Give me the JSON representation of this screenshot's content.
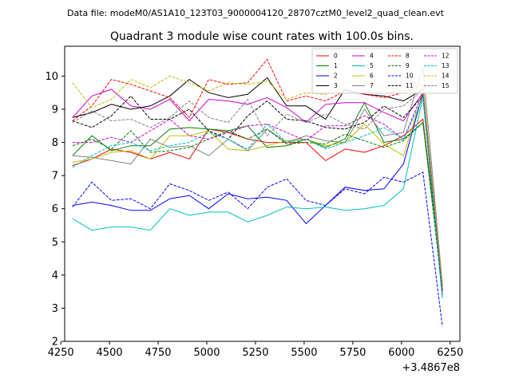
{
  "header": {
    "subtitle": "Data file: modeM0/AS1A10_123T03_9000004120_28707cztM0_level2_quad_clean.evt",
    "title": "Quadrant 3 module wise count rates with 100.0s bins."
  },
  "chart_data": {
    "type": "line",
    "title": "Quadrant 3 module wise count rates with 100.0s bins.",
    "subtitle": "Data file: modeM0/AS1A10_123T03_9000004120_28707cztM0_level2_quad_clean.evt",
    "xlabel": "",
    "ylabel": "",
    "x_offset_label": "+3.4867e8",
    "xlim": [
      4270,
      6300
    ],
    "ylim": [
      2,
      10.9
    ],
    "x_ticks": [
      4250,
      4500,
      4750,
      5000,
      5250,
      5500,
      5750,
      6000,
      6250
    ],
    "y_ticks": [
      2,
      3,
      4,
      5,
      6,
      7,
      8,
      9,
      10
    ],
    "grid": false,
    "legend_placement": "top-right",
    "x": [
      4310,
      4410,
      4510,
      4610,
      4710,
      4810,
      4910,
      5010,
      5110,
      5210,
      5310,
      5410,
      5510,
      5610,
      5710,
      5810,
      5910,
      6010,
      6110,
      6210
    ],
    "series": [
      {
        "name": "0",
        "color": "#ff0000",
        "dash": "solid",
        "values": [
          7.3,
          7.5,
          7.8,
          7.7,
          7.5,
          7.7,
          7.5,
          8.4,
          8.3,
          8.1,
          8.0,
          8.0,
          8.0,
          7.45,
          7.8,
          7.7,
          7.9,
          8.2,
          8.7,
          3.7
        ]
      },
      {
        "name": "1",
        "color": "#008000",
        "dash": "solid",
        "values": [
          7.6,
          8.2,
          7.75,
          7.9,
          7.9,
          8.4,
          8.45,
          8.4,
          8.35,
          8.5,
          7.85,
          7.9,
          8.1,
          7.85,
          8.1,
          9.2,
          8.0,
          8.1,
          8.6,
          3.7
        ]
      },
      {
        "name": "2",
        "color": "#0000ff",
        "dash": "solid",
        "values": [
          6.1,
          6.2,
          6.1,
          5.95,
          5.95,
          6.3,
          6.4,
          6.0,
          6.45,
          6.3,
          6.35,
          6.25,
          5.55,
          6.1,
          6.65,
          6.55,
          6.6,
          7.35,
          9.5,
          3.6
        ]
      },
      {
        "name": "3",
        "color": "#000000",
        "dash": "solid",
        "values": [
          8.75,
          8.9,
          9.15,
          9.0,
          9.1,
          9.4,
          9.9,
          9.5,
          9.35,
          9.45,
          9.95,
          9.1,
          9.1,
          8.7,
          9.6,
          9.45,
          9.4,
          9.25,
          9.6,
          3.6
        ]
      },
      {
        "name": "4",
        "color": "#cc00cc",
        "dash": "solid",
        "values": [
          8.75,
          9.4,
          9.6,
          9.1,
          9.0,
          9.3,
          8.65,
          9.3,
          9.25,
          9.15,
          9.35,
          9.05,
          8.6,
          9.15,
          9.2,
          9.2,
          8.9,
          8.65,
          9.5,
          3.5
        ]
      },
      {
        "name": "5",
        "color": "#00bfbf",
        "dash": "solid",
        "values": [
          5.7,
          5.35,
          5.45,
          5.45,
          5.35,
          6.0,
          5.8,
          5.9,
          5.9,
          5.6,
          5.8,
          6.05,
          6.0,
          6.05,
          5.95,
          6.0,
          6.1,
          6.6,
          9.4,
          3.3
        ]
      },
      {
        "name": "6",
        "color": "#bfbf00",
        "dash": "solid",
        "values": [
          7.4,
          7.5,
          7.7,
          7.75,
          7.5,
          8.2,
          8.2,
          8.35,
          7.8,
          7.75,
          7.9,
          8.05,
          8.1,
          7.9,
          8.0,
          8.55,
          7.95,
          7.6,
          9.5,
          3.6
        ]
      },
      {
        "name": "7",
        "color": "#808080",
        "dash": "solid",
        "values": [
          7.6,
          7.55,
          7.45,
          7.35,
          8.1,
          7.85,
          7.9,
          7.6,
          8.1,
          7.75,
          8.4,
          8.0,
          8.2,
          8.05,
          8.0,
          9.0,
          8.2,
          8.3,
          10.25,
          3.7
        ]
      },
      {
        "name": "8",
        "color": "#ff0000",
        "dash": "dashed",
        "values": [
          8.65,
          9.1,
          9.9,
          9.75,
          9.55,
          9.35,
          8.75,
          9.9,
          9.75,
          9.8,
          10.5,
          9.25,
          9.4,
          9.25,
          9.55,
          9.45,
          9.35,
          9.5,
          9.75,
          3.5
        ]
      },
      {
        "name": "9",
        "color": "#008000",
        "dash": "dashed",
        "values": [
          7.9,
          8.1,
          7.8,
          8.35,
          7.7,
          7.75,
          7.85,
          8.1,
          8.35,
          8.1,
          8.4,
          7.95,
          8.0,
          7.95,
          8.25,
          8.05,
          7.85,
          8.05,
          8.6,
          3.5
        ]
      },
      {
        "name": "10",
        "color": "#0000ff",
        "dash": "dashed",
        "values": [
          6.05,
          6.8,
          6.25,
          6.3,
          6.0,
          6.75,
          6.55,
          6.25,
          6.5,
          6.0,
          6.65,
          6.9,
          6.25,
          6.1,
          6.6,
          6.45,
          6.95,
          6.8,
          7.1,
          2.45
        ]
      },
      {
        "name": "11",
        "color": "#000000",
        "dash": "dashed",
        "values": [
          8.65,
          8.45,
          8.8,
          9.4,
          8.7,
          8.7,
          9.0,
          8.35,
          8.1,
          8.8,
          9.25,
          8.7,
          8.65,
          8.45,
          8.4,
          8.6,
          9.1,
          8.75,
          9.4,
          3.4
        ]
      },
      {
        "name": "12",
        "color": "#cc00cc",
        "dash": "dashed",
        "values": [
          8.0,
          8.0,
          8.15,
          8.0,
          8.35,
          8.7,
          8.2,
          8.1,
          8.3,
          8.5,
          8.55,
          8.3,
          8.05,
          8.5,
          8.5,
          8.8,
          8.55,
          8.1,
          9.5,
          3.4
        ]
      },
      {
        "name": "13",
        "color": "#00bfbf",
        "dash": "dashed",
        "values": [
          7.25,
          7.6,
          7.9,
          8.0,
          7.75,
          7.9,
          8.0,
          8.3,
          8.1,
          7.8,
          8.55,
          8.0,
          8.1,
          7.8,
          8.0,
          8.2,
          8.45,
          8.1,
          9.35,
          3.3
        ]
      },
      {
        "name": "14",
        "color": "#bfbf00",
        "dash": "dashed",
        "values": [
          9.8,
          9.05,
          9.3,
          9.9,
          9.65,
          10.0,
          9.8,
          9.55,
          9.8,
          9.75,
          9.85,
          9.3,
          9.5,
          9.45,
          9.8,
          9.85,
          9.65,
          9.55,
          9.75,
          3.7
        ]
      },
      {
        "name": "15",
        "color": "#808080",
        "dash": "dashed",
        "values": [
          8.6,
          8.95,
          8.65,
          8.7,
          8.45,
          8.75,
          9.25,
          8.75,
          8.6,
          9.3,
          8.2,
          8.85,
          8.6,
          8.85,
          8.55,
          8.4,
          9.0,
          9.1,
          9.6,
          3.6
        ]
      }
    ]
  }
}
